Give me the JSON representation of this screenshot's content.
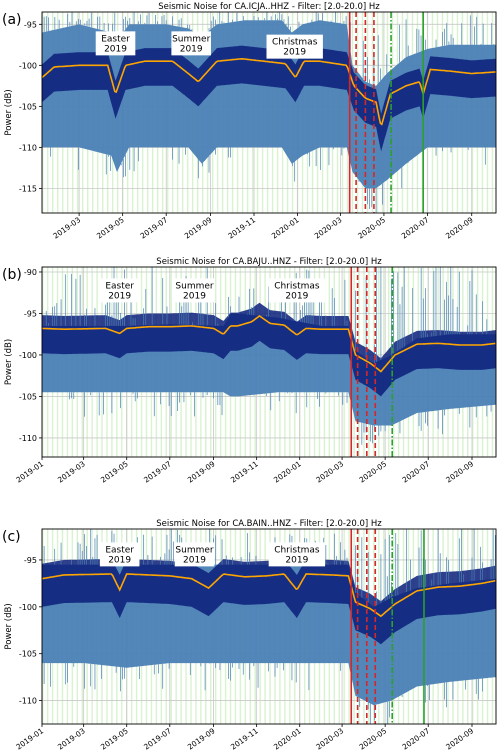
{
  "chart_data": [
    {
      "type": "line",
      "panel_label": "(a)",
      "title": "Seismic Noise for CA.ICJA..HHZ - Filter: [2.0-20.0] Hz",
      "xlabel": "",
      "ylabel": "Power (dB)",
      "xlim": [
        "2019-01-08",
        "2020-10-05"
      ],
      "ylim": [
        -118,
        -93.5
      ],
      "yticks": [
        -95,
        -100,
        -105,
        -110,
        -115
      ],
      "xticks": [
        "2019-03",
        "2019-05",
        "2019-07",
        "2019-09",
        "2019-11",
        "2020-01",
        "2020-03",
        "2020-05",
        "2020-07",
        "2020-09"
      ],
      "grid": true,
      "annotations": [
        {
          "text": [
            "Easter",
            "2019"
          ],
          "x": "2019-04-21",
          "y": -97.2
        },
        {
          "text": [
            "Summer",
            "2019"
          ],
          "x": "2019-08-05",
          "y": -97.2
        },
        {
          "text": [
            "Christmas",
            "2019"
          ],
          "x": "2019-12-28",
          "y": -97.6
        }
      ],
      "vlines": [
        {
          "x": "2020-03-14",
          "color": "#d62728",
          "style": "solid"
        },
        {
          "x": "2020-03-23",
          "color": "#d62728",
          "style": "dashed"
        },
        {
          "x": "2020-04-05",
          "color": "#d62728",
          "style": "dashed"
        },
        {
          "x": "2020-04-17",
          "color": "#d62728",
          "style": "dashed"
        },
        {
          "x": "2020-05-11",
          "color": "#2ca02c",
          "style": "dashdot"
        },
        {
          "x": "2020-06-25",
          "color": "#2ca02c",
          "style": "solid"
        }
      ],
      "series": [
        {
          "role": "envelope",
          "x": [
            "2019-01-08",
            "2019-03-01",
            "2019-04-15",
            "2019-04-23",
            "2019-05-10",
            "2019-07-01",
            "2019-08-01",
            "2019-08-20",
            "2019-09-10",
            "2019-10-20",
            "2019-12-10",
            "2019-12-24",
            "2020-01-08",
            "2020-02-01",
            "2020-03-10",
            "2020-03-18",
            "2020-04-05",
            "2020-04-20",
            "2020-05-05",
            "2020-06-01",
            "2020-07-01",
            "2020-08-01",
            "2020-10-05"
          ],
          "low": [
            -110,
            -110,
            -111,
            -113,
            -110,
            -110,
            -110,
            -112,
            -110,
            -110,
            -110,
            -112,
            -111,
            -110,
            -110,
            -113,
            -115,
            -115,
            -114,
            -112,
            -110,
            -110,
            -110
          ],
          "high": [
            -96,
            -95,
            -96,
            -97,
            -95,
            -95,
            -95.5,
            -96.5,
            -95,
            -94.5,
            -94.5,
            -96,
            -95,
            -94.5,
            -95,
            -100,
            -102,
            -102.5,
            -101,
            -99,
            -98,
            -97.5,
            -97.5
          ]
        },
        {
          "role": "daily_median",
          "x": [
            "2019-01-08",
            "2019-01-25",
            "2019-03-01",
            "2019-04-10",
            "2019-04-21",
            "2019-05-05",
            "2019-06-01",
            "2019-07-10",
            "2019-08-01",
            "2019-08-15",
            "2019-09-10",
            "2019-10-15",
            "2019-11-15",
            "2019-12-15",
            "2019-12-29",
            "2020-01-10",
            "2020-02-01",
            "2020-03-10",
            "2020-03-20",
            "2020-04-05",
            "2020-04-20",
            "2020-04-27",
            "2020-05-10",
            "2020-06-01",
            "2020-06-20",
            "2020-06-25",
            "2020-07-05",
            "2020-08-01",
            "2020-09-01",
            "2020-10-05"
          ],
          "values": [
            -101.5,
            -100.2,
            -100,
            -100,
            -103.5,
            -100,
            -99.5,
            -99.5,
            -101,
            -102,
            -99.5,
            -99.2,
            -99.5,
            -99.8,
            -101.5,
            -99.5,
            -99.5,
            -100,
            -102.5,
            -104,
            -104.5,
            -107.5,
            -103.5,
            -102.5,
            -102,
            -103.5,
            -100.5,
            -100.7,
            -101,
            -100.8
          ]
        }
      ]
    },
    {
      "type": "line",
      "panel_label": "(b)",
      "title": "Seismic Noise for CA.BAJU..HNZ - Filter: [2.0-20.0] Hz",
      "xlabel": "",
      "ylabel": "Power (dB)",
      "xlim": [
        "2019-01-01",
        "2020-10-05"
      ],
      "ylim": [
        -112.3,
        -89.4
      ],
      "yticks": [
        -90,
        -95,
        -100,
        -105,
        -110
      ],
      "xticks": [
        "2019-01",
        "2019-03",
        "2019-05",
        "2019-07",
        "2019-09",
        "2019-11",
        "2020-01",
        "2020-03",
        "2020-05",
        "2020-07",
        "2020-09"
      ],
      "grid": true,
      "annotations": [
        {
          "text": [
            "Easter",
            "2019"
          ],
          "x": "2019-04-21",
          "y": -92.1
        },
        {
          "text": [
            "Summer",
            "2019"
          ],
          "x": "2019-08-05",
          "y": -92.1
        },
        {
          "text": [
            "Christmas",
            "2019"
          ],
          "x": "2019-12-28",
          "y": -92.1
        }
      ],
      "vlines": [
        {
          "x": "2020-03-14",
          "color": "#d62728",
          "style": "solid"
        },
        {
          "x": "2020-03-23",
          "color": "#d62728",
          "style": "dashed"
        },
        {
          "x": "2020-04-05",
          "color": "#d62728",
          "style": "dashed"
        },
        {
          "x": "2020-04-17",
          "color": "#d62728",
          "style": "dashed"
        },
        {
          "x": "2020-05-11",
          "color": "#2ca02c",
          "style": "dashdot"
        }
      ],
      "series": [
        {
          "role": "envelope",
          "x": [
            "2019-01-01",
            "2019-03-01",
            "2019-05-01",
            "2019-07-01",
            "2019-09-15",
            "2019-09-25",
            "2019-10-05",
            "2019-12-01",
            "2020-02-01",
            "2020-03-10",
            "2020-03-20",
            "2020-04-15",
            "2020-05-10",
            "2020-06-15",
            "2020-08-01",
            "2020-10-05"
          ],
          "low": [
            -104.5,
            -104.5,
            -104.5,
            -104.5,
            -104.5,
            -105,
            -105,
            -104.5,
            -104.5,
            -104.5,
            -108,
            -108.5,
            -108.5,
            -107,
            -106.5,
            -106
          ],
          "high": [
            -96.5,
            -96.5,
            -96.5,
            -96.3,
            -96.5,
            -95,
            -95,
            -95.5,
            -96.5,
            -96.5,
            -99.5,
            -101,
            -100,
            -98,
            -97.5,
            -97.5
          ]
        },
        {
          "role": "daily_median",
          "x": [
            "2019-01-01",
            "2019-02-01",
            "2019-04-01",
            "2019-04-21",
            "2019-05-01",
            "2019-06-01",
            "2019-07-01",
            "2019-08-01",
            "2019-09-01",
            "2019-09-15",
            "2019-09-25",
            "2019-10-05",
            "2019-10-25",
            "2019-11-05",
            "2019-11-20",
            "2019-12-10",
            "2019-12-28",
            "2020-01-10",
            "2020-02-01",
            "2020-03-10",
            "2020-03-20",
            "2020-04-10",
            "2020-04-25",
            "2020-05-15",
            "2020-06-15",
            "2020-07-15",
            "2020-08-15",
            "2020-09-15",
            "2020-10-05"
          ],
          "values": [
            -96.8,
            -96.9,
            -96.8,
            -97.4,
            -96.8,
            -96.6,
            -96.6,
            -96.5,
            -96.8,
            -97.5,
            -96.5,
            -96.5,
            -96.0,
            -95.3,
            -96.2,
            -96.4,
            -97.6,
            -96.8,
            -96.9,
            -96.9,
            -100,
            -101,
            -102,
            -100,
            -98.7,
            -98.6,
            -98.8,
            -98.8,
            -98.6
          ]
        }
      ]
    },
    {
      "type": "line",
      "panel_label": "(c)",
      "title": "Seismic Noise for CA.BAIN..HNZ - Filter: [2.0-20.0] Hz",
      "xlabel": "",
      "ylabel": "Power (dB)",
      "xlim": [
        "2019-01-01",
        "2020-10-05"
      ],
      "ylim": [
        -112.5,
        -91.7
      ],
      "yticks": [
        -95,
        -100,
        -105,
        -110
      ],
      "xticks": [
        "2019-01",
        "2019-03",
        "2019-05",
        "2019-07",
        "2019-09",
        "2019-11",
        "2020-01",
        "2020-03",
        "2020-05",
        "2020-07",
        "2020-09"
      ],
      "grid": true,
      "annotations": [
        {
          "text": [
            "Easter",
            "2019"
          ],
          "x": "2019-04-21",
          "y": -94.3
        },
        {
          "text": [
            "Summer",
            "2019"
          ],
          "x": "2019-08-05",
          "y": -94.3
        },
        {
          "text": [
            "Christmas",
            "2019"
          ],
          "x": "2019-12-28",
          "y": -94.3
        }
      ],
      "vlines": [
        {
          "x": "2020-03-14",
          "color": "#d62728",
          "style": "solid"
        },
        {
          "x": "2020-03-23",
          "color": "#d62728",
          "style": "dashed"
        },
        {
          "x": "2020-04-05",
          "color": "#d62728",
          "style": "dashed"
        },
        {
          "x": "2020-04-17",
          "color": "#d62728",
          "style": "dashed"
        },
        {
          "x": "2020-05-11",
          "color": "#2ca02c",
          "style": "dashdot"
        },
        {
          "x": "2020-06-25",
          "color": "#2ca02c",
          "style": "solid"
        }
      ],
      "series": [
        {
          "role": "envelope",
          "x": [
            "2019-01-01",
            "2019-03-01",
            "2019-05-01",
            "2019-07-01",
            "2019-09-01",
            "2019-11-01",
            "2020-01-01",
            "2020-03-10",
            "2020-03-20",
            "2020-04-15",
            "2020-05-10",
            "2020-06-15",
            "2020-08-01",
            "2020-10-05"
          ],
          "low": [
            -106,
            -106,
            -106.5,
            -106,
            -106,
            -106,
            -106,
            -106,
            -109.5,
            -110.5,
            -110,
            -108.5,
            -108,
            -107.5
          ],
          "high": [
            -95.5,
            -95.5,
            -95.5,
            -95.5,
            -95.5,
            -95.5,
            -95.5,
            -95.5,
            -98.5,
            -100,
            -99,
            -98,
            -97.5,
            -97
          ]
        },
        {
          "role": "daily_median",
          "x": [
            "2019-01-01",
            "2019-02-01",
            "2019-04-10",
            "2019-04-21",
            "2019-05-01",
            "2019-06-01",
            "2019-07-01",
            "2019-08-01",
            "2019-08-25",
            "2019-09-15",
            "2019-10-15",
            "2019-11-15",
            "2019-12-10",
            "2019-12-28",
            "2020-01-10",
            "2020-02-15",
            "2020-03-10",
            "2020-03-20",
            "2020-04-10",
            "2020-04-25",
            "2020-05-15",
            "2020-06-15",
            "2020-07-15",
            "2020-08-15",
            "2020-09-15",
            "2020-10-05"
          ],
          "values": [
            -97,
            -96.6,
            -96.5,
            -98.2,
            -96.5,
            -96.6,
            -96.7,
            -97,
            -98,
            -96.5,
            -96.8,
            -96.7,
            -96.5,
            -98.2,
            -96.5,
            -96.6,
            -96.7,
            -99.5,
            -100.2,
            -101,
            -99.7,
            -98.3,
            -97.9,
            -97.8,
            -97.5,
            -97.2
          ]
        }
      ]
    }
  ]
}
